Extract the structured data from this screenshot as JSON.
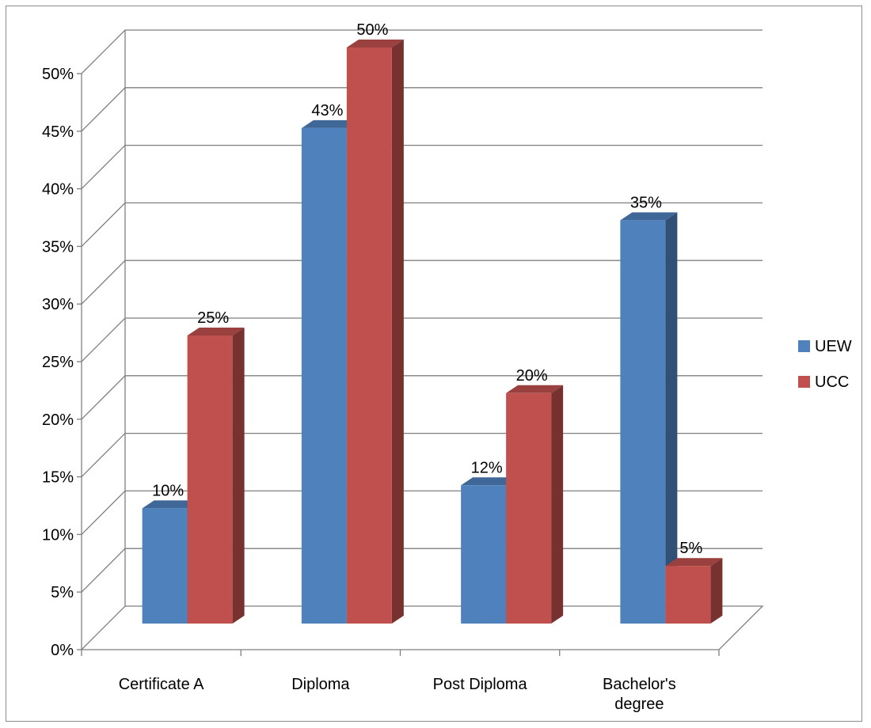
{
  "chart_data": {
    "type": "bar",
    "categories": [
      "Certificate A",
      "Diploma",
      "Post Diploma",
      "Bachelor's degree"
    ],
    "series": [
      {
        "name": "UEW",
        "values": [
          10,
          43,
          12,
          35
        ],
        "labels": [
          "10%",
          "43%",
          "12%",
          "35%"
        ],
        "color": "#4f81bd"
      },
      {
        "name": "UCC",
        "values": [
          25,
          50,
          20,
          5
        ],
        "labels": [
          "25%",
          "50%",
          "20%",
          "5%"
        ],
        "color": "#c0504d"
      }
    ],
    "y_ticks": [
      "0%",
      "5%",
      "10%",
      "15%",
      "20%",
      "25%",
      "30%",
      "35%",
      "40%",
      "45%",
      "50%"
    ],
    "ylim": [
      0,
      50
    ],
    "title": "",
    "xlabel": "",
    "ylabel": "",
    "grid": true,
    "legend_position": "right",
    "style": "3d-clustered-column"
  }
}
